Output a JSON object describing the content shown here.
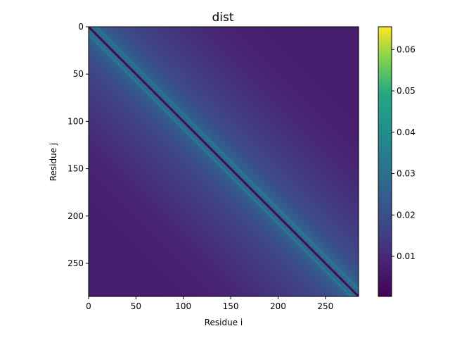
{
  "chart_data": {
    "type": "heatmap",
    "title": "dist",
    "xlabel": "Residue i",
    "ylabel": "Residue j",
    "n_residues": 285,
    "x_ticks": [
      0,
      50,
      100,
      150,
      200,
      250
    ],
    "y_ticks": [
      0,
      50,
      100,
      150,
      200,
      250
    ],
    "xlim": [
      0,
      285
    ],
    "ylim": [
      285,
      0
    ],
    "colormap": "viridis",
    "colorbar": {
      "range": [
        0.0003,
        0.0655
      ],
      "ticks": [
        0.01,
        0.02,
        0.03,
        0.04,
        0.05,
        0.06
      ],
      "tick_labels": [
        "0.01",
        "0.02",
        "0.03",
        "0.04",
        "0.05",
        "0.06"
      ]
    },
    "diagonal_value": 0.0003,
    "off_diagonal_peak": 0.035,
    "background_min": 0.007
  }
}
